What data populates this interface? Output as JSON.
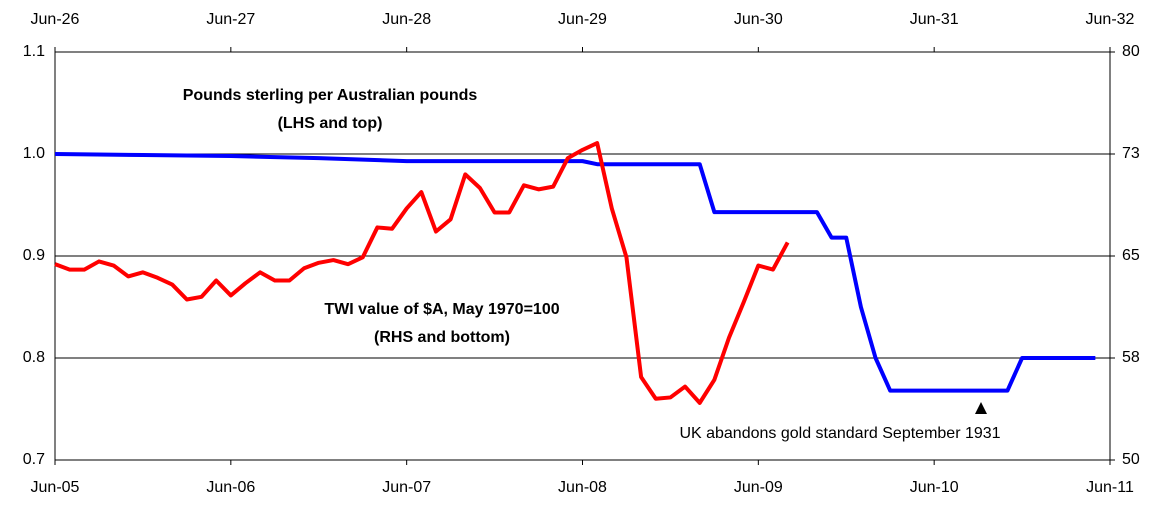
{
  "chart_data": {
    "type": "line",
    "annotations": [
      "Pounds  sterling per Australian pounds",
      "(LHS and top)",
      "TWI value of $A, May 1970=100",
      "(RHS and bottom)",
      "UK abandons gold standard September 1931"
    ],
    "xlim": [
      0,
      72
    ],
    "xticks": [
      {
        "value": 0,
        "label": "Jun-05"
      },
      {
        "value": 12,
        "label": "Jun-06"
      },
      {
        "value": 24,
        "label": "Jun-07"
      },
      {
        "value": 36,
        "label": "Jun-08"
      },
      {
        "value": 48,
        "label": "Jun-09"
      },
      {
        "value": 60,
        "label": "Jun-10"
      },
      {
        "value": 72,
        "label": "Jun-11"
      }
    ],
    "x2lim": [
      0,
      72
    ],
    "x2ticks": [
      {
        "value": 0,
        "label": "Jun-26"
      },
      {
        "value": 12,
        "label": "Jun-27"
      },
      {
        "value": 24,
        "label": "Jun-28"
      },
      {
        "value": 36,
        "label": "Jun-29"
      },
      {
        "value": 48,
        "label": "Jun-30"
      },
      {
        "value": 60,
        "label": "Jun-31"
      },
      {
        "value": 72,
        "label": "Jun-32"
      }
    ],
    "ylim": [
      0.7,
      1.1
    ],
    "yticks": [
      0.7,
      0.8,
      0.9,
      {
        "value": 1,
        "label": "1.0"
      },
      1.1
    ],
    "y2lim": [
      50,
      80
    ],
    "y2ticks": [
      50,
      {
        "value": 57.5,
        "label": "58"
      },
      65,
      {
        "value": 72.5,
        "label": "73"
      },
      80
    ],
    "grid": true,
    "series": [
      {
        "color": "#0000ff",
        "xaxis": "x2",
        "x": [
          0,
          6,
          12,
          18,
          24,
          36,
          37,
          44,
          45,
          52,
          53,
          54,
          55,
          56,
          57,
          65,
          66,
          71
        ],
        "values": [
          1.0,
          0.999,
          0.998,
          0.996,
          0.993,
          0.993,
          0.99,
          0.99,
          0.943,
          0.943,
          0.918,
          0.918,
          0.85,
          0.8,
          0.768,
          0.768,
          0.8,
          0.8
        ]
      },
      {
        "color": "#ff0000",
        "axis": "y2",
        "x": [
          0,
          1,
          2,
          3,
          4,
          5,
          6,
          7,
          8,
          9,
          10,
          11,
          12,
          13,
          14,
          15,
          16,
          17,
          18,
          19,
          20,
          21,
          22,
          23,
          24,
          25,
          26,
          27,
          28,
          29,
          30,
          31,
          32,
          33,
          34,
          35,
          36,
          37,
          38,
          39,
          40,
          41,
          42,
          43,
          44,
          45,
          46,
          47,
          48,
          49,
          50
        ],
        "values": [
          64.4,
          64.0,
          64.0,
          64.6,
          64.3,
          63.5,
          63.8,
          63.4,
          62.9,
          61.8,
          62.0,
          63.2,
          62.1,
          63.0,
          63.8,
          63.2,
          63.2,
          64.1,
          64.5,
          64.7,
          64.4,
          64.9,
          67.1,
          67.0,
          68.5,
          69.7,
          66.8,
          67.7,
          71.0,
          70.0,
          68.2,
          68.2,
          70.2,
          69.9,
          70.1,
          72.2,
          72.8,
          73.3,
          68.5,
          64.9,
          56.1,
          54.5,
          54.6,
          55.4,
          54.2,
          55.9,
          59.0,
          61.6,
          64.3,
          64.0,
          66.0
        ]
      }
    ]
  }
}
